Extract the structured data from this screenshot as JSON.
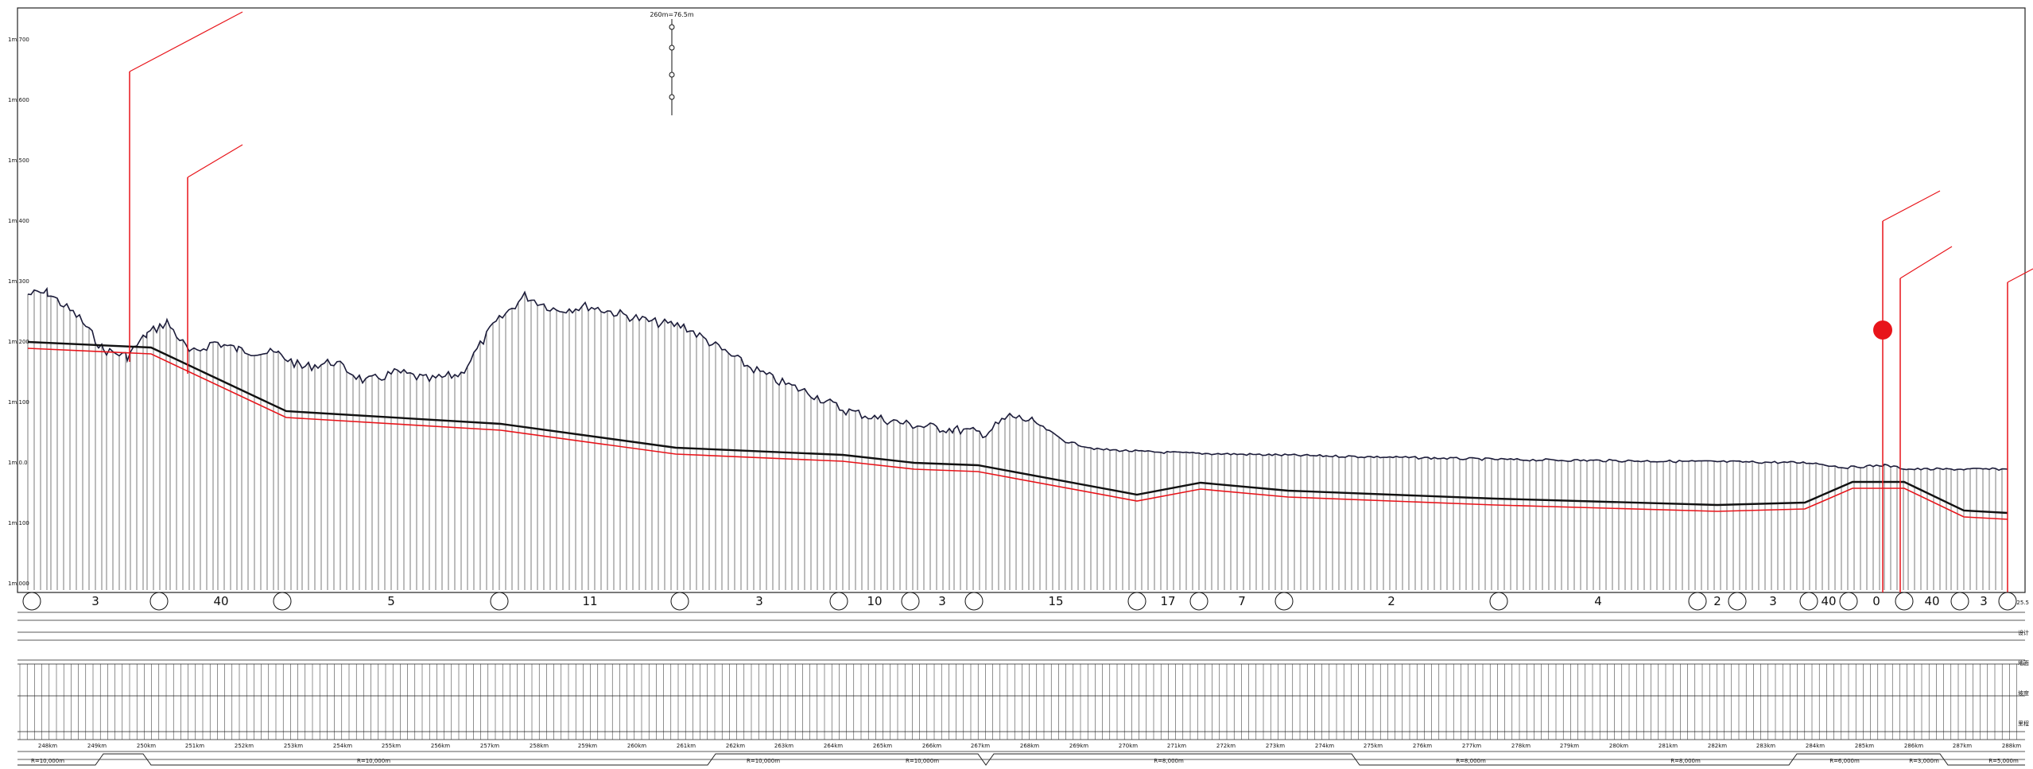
{
  "title_marker": "260m=76.5m",
  "colors": {
    "ground": "#1c1c3a",
    "design": "#111111",
    "offset": "#e8141a",
    "marker": "#e8141a",
    "grid": "#222222"
  },
  "y_axis_ticks": [
    "1m.700",
    "1m.600",
    "1m.500",
    "1m.400",
    "1m.300",
    "1m.200",
    "1m.100",
    "1m.0.0",
    "1m.100",
    "1m.000"
  ],
  "segment_counts": [
    "3",
    "40",
    "5",
    "11",
    "3",
    "10",
    "3",
    "15",
    "17",
    "7",
    "2",
    "4",
    "2",
    "3",
    "40",
    "0",
    "40",
    "3"
  ],
  "km_labels": [
    "248km",
    "249km",
    "250km",
    "251km",
    "252km",
    "253km",
    "254km",
    "255km",
    "256km",
    "257km",
    "258km",
    "259km",
    "260km",
    "261km",
    "262km",
    "263km",
    "264km",
    "265km",
    "266km",
    "267km",
    "268km",
    "269km",
    "270km",
    "271km",
    "272km",
    "273km",
    "274km",
    "275km",
    "276km",
    "277km",
    "278km",
    "279km",
    "280km",
    "281km",
    "282km",
    "283km",
    "284km",
    "285km",
    "286km",
    "287km",
    "288km"
  ],
  "curve_labels": [
    "R=10,000m",
    "R=10,000m",
    "R=10,000m",
    "R=10,000m",
    "R=8,000m",
    "R=8,000m",
    "R=8,000m",
    "R=6,000m",
    "R=3,000m",
    "R=5,000m"
  ],
  "side_labels": [
    "25.5",
    "设计",
    "地面",
    "坡度",
    "里程"
  ]
}
